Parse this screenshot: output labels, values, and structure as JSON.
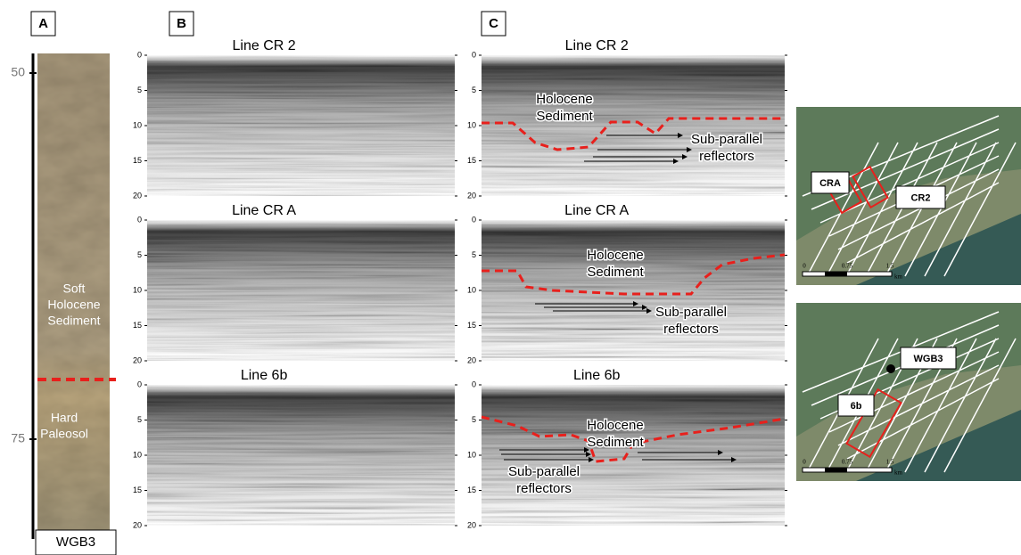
{
  "panel_a": {
    "label": "A",
    "depth_ticks": [
      "50",
      "75"
    ],
    "upper_unit": [
      "Soft",
      "Holocene",
      "Sediment"
    ],
    "lower_unit": [
      "Hard",
      "Paleosol"
    ],
    "core": "WGB3"
  },
  "depth_ticks": [
    0,
    5,
    10,
    15,
    20
  ],
  "panel_b": {
    "label": "B",
    "lines": [
      "Line CR 2",
      "Line CR A",
      "Line 6b"
    ]
  },
  "panel_c": {
    "label": "C",
    "lines": [
      "Line CR 2",
      "Line CR A",
      "Line 6b"
    ],
    "annotations": [
      {
        "sediment": [
          "Holocene",
          "Sediment"
        ],
        "reflectors": [
          "Sub-parallel",
          "reflectors"
        ]
      },
      {
        "sediment": [
          "Holocene",
          "Sediment"
        ],
        "reflectors": [
          "Sub-parallel",
          "reflectors"
        ]
      },
      {
        "sediment": [
          "Holocene",
          "Sediment"
        ],
        "reflectors": [
          "Sub-parallel",
          "reflectors"
        ]
      }
    ]
  },
  "maps": [
    {
      "labels": [
        "CRA",
        "CR2"
      ],
      "scale": [
        "0",
        "0.75",
        "1.5",
        "km"
      ]
    },
    {
      "labels": [
        "WGB3",
        "6b"
      ],
      "scale": [
        "0",
        "0.75",
        "1.5",
        "km"
      ]
    }
  ]
}
